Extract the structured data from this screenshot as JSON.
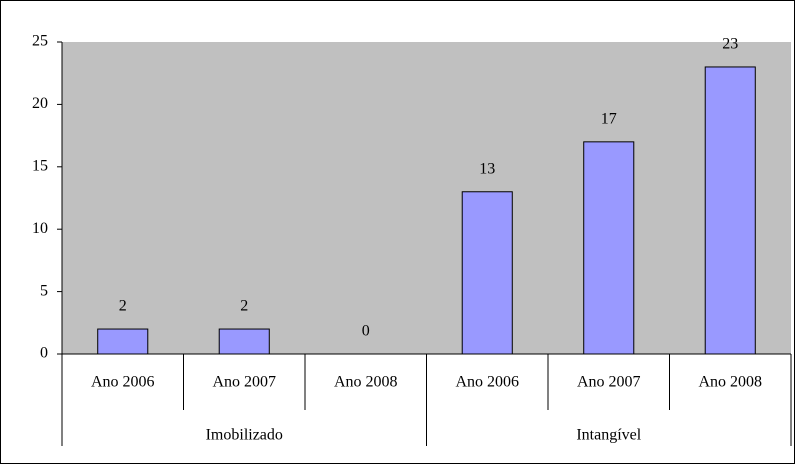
{
  "chart_data": {
    "type": "bar",
    "groups": [
      {
        "name": "Imobilizado",
        "categories": [
          "Ano 2006",
          "Ano 2007",
          "Ano 2008"
        ],
        "values": [
          2,
          2,
          0
        ]
      },
      {
        "name": "Intangível",
        "categories": [
          "Ano 2006",
          "Ano 2007",
          "Ano 2008"
        ],
        "values": [
          13,
          17,
          23
        ]
      }
    ],
    "color": "#9999ff",
    "ylim": [
      0,
      25
    ],
    "yticks": [
      0,
      5,
      10,
      15,
      20,
      25
    ],
    "grid": false
  }
}
